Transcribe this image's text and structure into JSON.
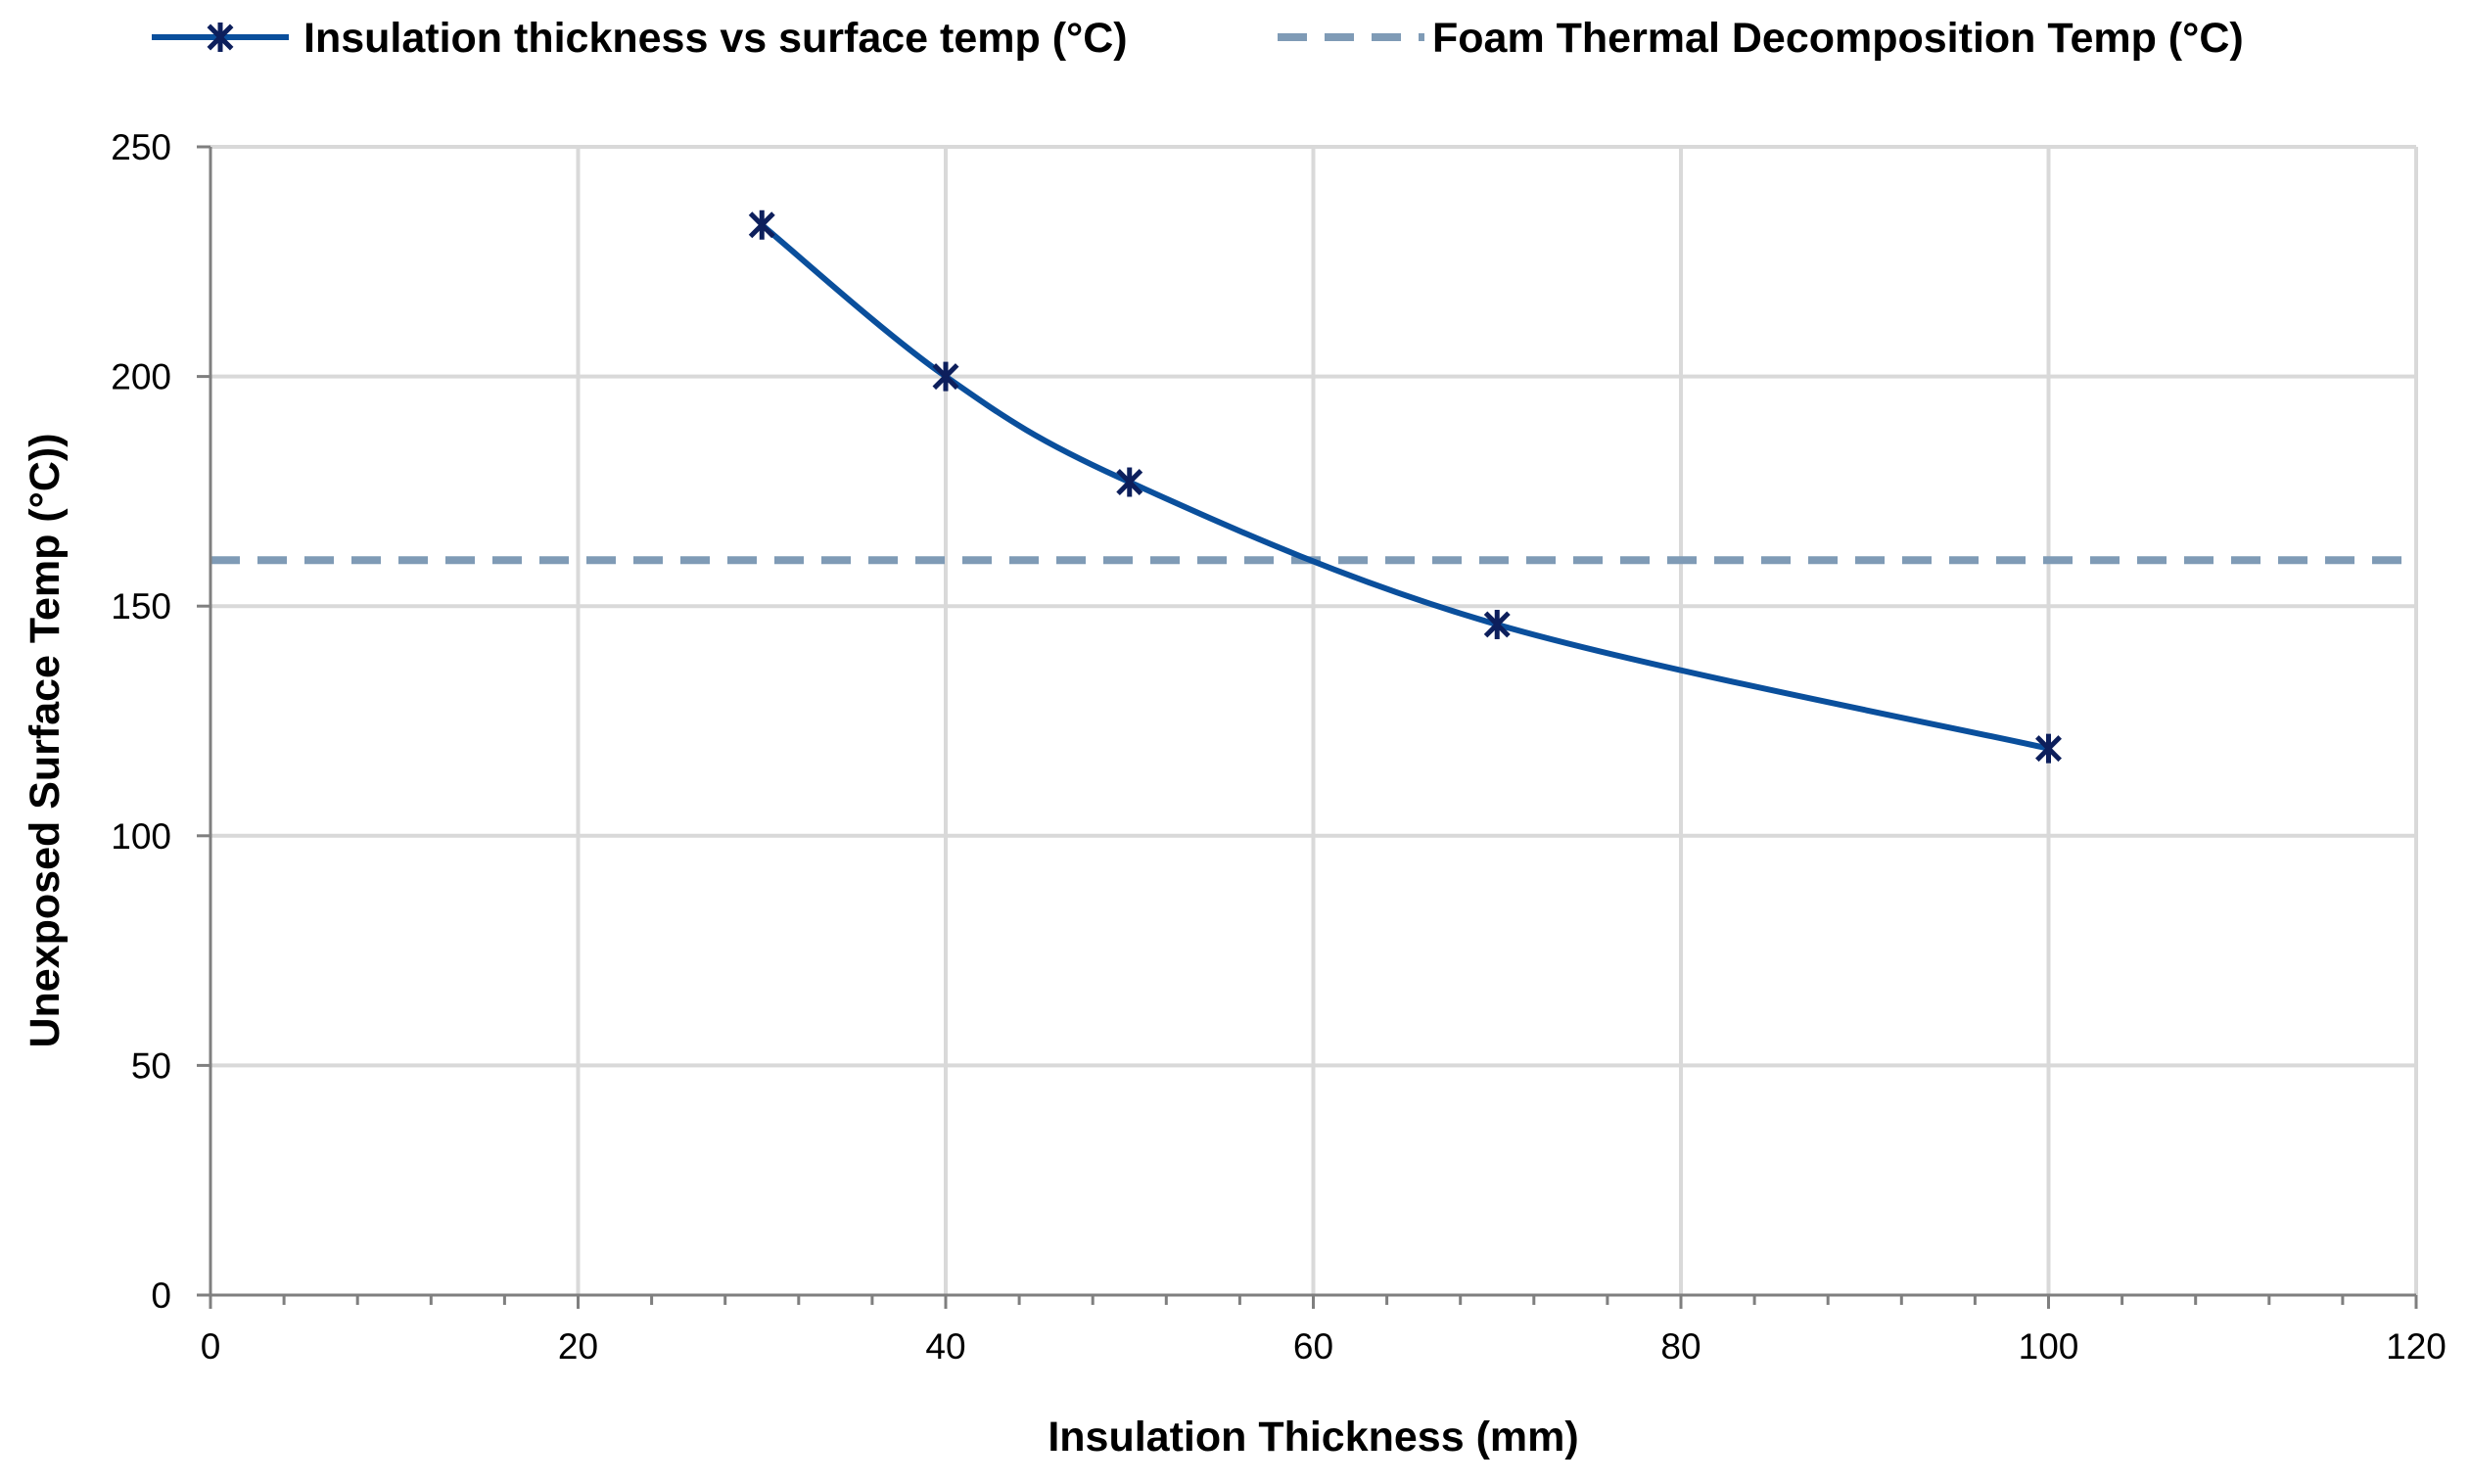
{
  "chart_data": {
    "type": "line",
    "xlabel": "Insulation Thickness (mm)",
    "ylabel": "Unexposed Surface Temp (°C))",
    "xlim": [
      0,
      120
    ],
    "ylim": [
      0,
      250
    ],
    "xticks": [
      0,
      20,
      40,
      60,
      80,
      100,
      120
    ],
    "yticks": [
      0,
      50,
      100,
      150,
      200,
      250
    ],
    "grid": true,
    "legend_position": "top",
    "series": [
      {
        "name": "Insulation thickness vs surface temp (°C)",
        "style": "smooth-line-star-markers",
        "color": "#0a4f9c",
        "marker_color": "#0d1f5c",
        "x": [
          30,
          40,
          50,
          70,
          100
        ],
        "values": [
          233,
          200,
          177,
          146,
          119
        ]
      },
      {
        "name": "Foam Thermal Decomposition Temp (°C)",
        "style": "dashed-horizontal",
        "color": "#7f9bb6",
        "value": 160
      }
    ]
  }
}
